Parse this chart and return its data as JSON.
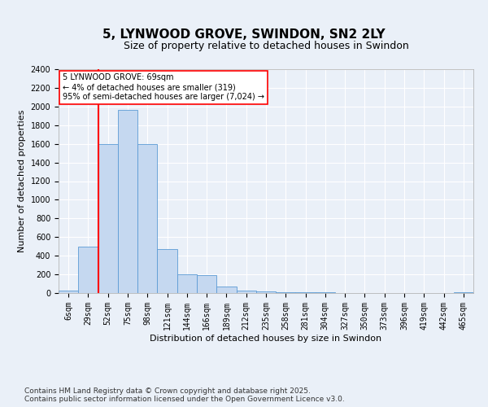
{
  "title": "5, LYNWOOD GROVE, SWINDON, SN2 2LY",
  "subtitle": "Size of property relative to detached houses in Swindon",
  "xlabel": "Distribution of detached houses by size in Swindon",
  "ylabel": "Number of detached properties",
  "categories": [
    "6sqm",
    "29sqm",
    "52sqm",
    "75sqm",
    "98sqm",
    "121sqm",
    "144sqm",
    "166sqm",
    "189sqm",
    "212sqm",
    "235sqm",
    "258sqm",
    "281sqm",
    "304sqm",
    "327sqm",
    "350sqm",
    "373sqm",
    "396sqm",
    "419sqm",
    "442sqm",
    "465sqm"
  ],
  "values": [
    30,
    500,
    1600,
    1960,
    1600,
    470,
    200,
    195,
    70,
    25,
    15,
    10,
    8,
    5,
    0,
    0,
    0,
    0,
    0,
    0,
    10
  ],
  "bar_color": "#c5d8f0",
  "bar_edge_color": "#5b9bd5",
  "vline_x": 1.5,
  "vline_color": "red",
  "vline_linewidth": 1.5,
  "annotation_text": "5 LYNWOOD GROVE: 69sqm\n← 4% of detached houses are smaller (319)\n95% of semi-detached houses are larger (7,024) →",
  "annotation_box_color": "white",
  "annotation_box_edge_color": "red",
  "ylim": [
    0,
    2400
  ],
  "yticks": [
    0,
    200,
    400,
    600,
    800,
    1000,
    1200,
    1400,
    1600,
    1800,
    2000,
    2200,
    2400
  ],
  "footer": "Contains HM Land Registry data © Crown copyright and database right 2025.\nContains public sector information licensed under the Open Government Licence v3.0.",
  "bg_color": "#eaf0f8",
  "plot_bg_color": "#eaf0f8",
  "grid_color": "white",
  "title_fontsize": 11,
  "subtitle_fontsize": 9,
  "xlabel_fontsize": 8,
  "ylabel_fontsize": 8,
  "tick_fontsize": 7,
  "annotation_fontsize": 7,
  "footer_fontsize": 6.5
}
